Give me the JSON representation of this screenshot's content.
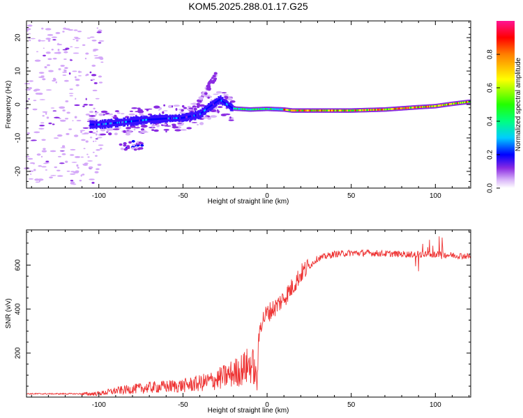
{
  "title": "KOM5.2025.288.01.17.G25",
  "colors": {
    "snr_line": "#ee3333",
    "axis": "#000000",
    "background": "#ffffff"
  },
  "chart_data": [
    {
      "type": "heatmap",
      "name": "spectrogram",
      "xlabel": "Height of straight line (km)",
      "ylabel": "Frequency (Hz)",
      "xlim": [
        -143,
        121
      ],
      "ylim": [
        -25,
        25
      ],
      "xticks": [
        -100,
        -50,
        0,
        50,
        100
      ],
      "yticks": [
        -20,
        -10,
        0,
        10,
        20
      ],
      "ridge": {
        "x": [
          -100,
          -90,
          -80,
          -70,
          -60,
          -50,
          -40,
          -35,
          -32,
          -28,
          -25,
          -20,
          -10,
          0,
          10,
          15,
          30,
          50,
          70,
          90,
          100,
          110,
          120
        ],
        "freq": [
          -6,
          -5.5,
          -5,
          -4.5,
          -4.2,
          -4,
          -3,
          -1,
          0,
          1.5,
          0.5,
          -1.2,
          -1.5,
          -1.3,
          -1.5,
          -1.8,
          -1.8,
          -1.8,
          -1.5,
          -0.8,
          -0.5,
          0.2,
          0.8
        ]
      },
      "colorbar": {
        "label": "Normalized spectral amplitude",
        "range": [
          0,
          1
        ],
        "ticks": [
          0.0,
          0.2,
          0.4,
          0.6,
          0.8
        ]
      }
    },
    {
      "type": "line",
      "name": "snr",
      "xlabel": "Height of straight line (km)",
      "ylabel": "SNR (v/v)",
      "xlim": [
        -143,
        121
      ],
      "ylim": [
        0,
        760
      ],
      "xticks": [
        -100,
        -50,
        0,
        50,
        100
      ],
      "yticks": [
        200,
        400,
        600
      ],
      "envelope": {
        "x": [
          -143,
          -110,
          -100,
          -90,
          -80,
          -70,
          -60,
          -50,
          -40,
          -30,
          -20,
          -15,
          -10,
          -8,
          -6,
          -5,
          -4,
          -2,
          0,
          5,
          10,
          15,
          20,
          30,
          40,
          50,
          60,
          70,
          80,
          90,
          100,
          110,
          121
        ],
        "snr": [
          12,
          12,
          14,
          25,
          32,
          38,
          42,
          46,
          55,
          70,
          95,
          110,
          130,
          120,
          60,
          250,
          330,
          360,
          380,
          410,
          450,
          500,
          560,
          630,
          650,
          655,
          655,
          652,
          650,
          648,
          650,
          645,
          640
        ]
      }
    }
  ]
}
